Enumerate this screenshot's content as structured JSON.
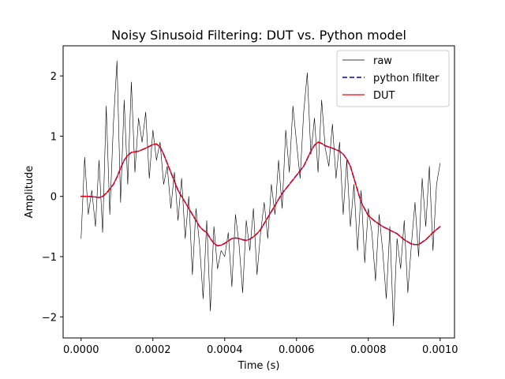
{
  "chart_data": {
    "type": "line",
    "title": "Noisy Sinusoid Filtering: DUT vs. Python model",
    "xlabel": "Time (s)",
    "ylabel": "Amplitude",
    "xlim": [
      -5e-05,
      0.00104
    ],
    "ylim": [
      -2.35,
      2.5
    ],
    "xticks": [
      0.0,
      0.0002,
      0.0004,
      0.0006,
      0.0008,
      0.001
    ],
    "xtick_labels": [
      "0.0000",
      "0.0002",
      "0.0004",
      "0.0006",
      "0.0008",
      "0.0010"
    ],
    "yticks": [
      -2,
      -1,
      0,
      1,
      2
    ],
    "ytick_labels": [
      "−2",
      "−1",
      "0",
      "1",
      "2"
    ],
    "grid": false,
    "legend_position": "top-right",
    "legend": [
      "raw",
      "python lfilter",
      "DUT"
    ],
    "series": [
      {
        "name": "raw",
        "color": "#000000",
        "style": "solid-thin",
        "x": [
          0.0,
          1e-05,
          2e-05,
          3e-05,
          4e-05,
          5e-05,
          6e-05,
          7e-05,
          8e-05,
          9e-05,
          0.0001,
          0.00011,
          0.00012,
          0.00013,
          0.00014,
          0.00015,
          0.00016,
          0.00017,
          0.00018,
          0.00019,
          0.0002,
          0.00021,
          0.00022,
          0.00023,
          0.00024,
          0.00025,
          0.00026,
          0.00027,
          0.00028,
          0.00029,
          0.0003,
          0.00031,
          0.00032,
          0.00033,
          0.00034,
          0.00035,
          0.00036,
          0.00037,
          0.00038,
          0.00039,
          0.0004,
          0.00041,
          0.00042,
          0.00043,
          0.00044,
          0.00045,
          0.00046,
          0.00047,
          0.00048,
          0.00049,
          0.0005,
          0.00051,
          0.00052,
          0.00053,
          0.00054,
          0.00055,
          0.00056,
          0.00057,
          0.00058,
          0.00059,
          0.0006,
          0.00061,
          0.00062,
          0.00063,
          0.00064,
          0.00065,
          0.00066,
          0.00067,
          0.00068,
          0.00069,
          0.0007,
          0.00071,
          0.00072,
          0.00073,
          0.00074,
          0.00075,
          0.00076,
          0.00077,
          0.00078,
          0.00079,
          0.0008,
          0.00081,
          0.00082,
          0.00083,
          0.00084,
          0.00085,
          0.00086,
          0.00087,
          0.00088,
          0.00089,
          0.0009,
          0.00091,
          0.00092,
          0.00093,
          0.00094,
          0.00095,
          0.00096,
          0.00097,
          0.00098,
          0.00099,
          0.001
        ],
        "values": [
          -0.7,
          0.65,
          -0.3,
          0.1,
          -0.5,
          0.6,
          -0.6,
          1.5,
          -0.3,
          1.2,
          2.25,
          -0.1,
          1.6,
          0.2,
          1.9,
          0.4,
          1.3,
          0.9,
          1.4,
          0.3,
          1.1,
          0.6,
          0.9,
          0.2,
          0.5,
          -0.2,
          0.4,
          -0.4,
          0.3,
          -0.7,
          0.0,
          -1.3,
          -0.2,
          -0.8,
          -1.7,
          -0.4,
          -1.9,
          -0.5,
          -1.2,
          -0.9,
          -1.0,
          -0.6,
          -1.5,
          -0.3,
          -0.8,
          -1.6,
          -0.4,
          -0.9,
          -0.2,
          -1.3,
          -0.6,
          -0.1,
          -0.7,
          0.2,
          -0.3,
          0.6,
          -0.2,
          1.1,
          0.4,
          1.5,
          0.9,
          0.3,
          1.4,
          2.05,
          0.7,
          1.3,
          0.4,
          1.6,
          0.8,
          0.5,
          1.2,
          0.3,
          0.9,
          -0.3,
          0.6,
          -0.5,
          0.2,
          -0.9,
          0.1,
          -1.1,
          -0.2,
          -0.6,
          -1.4,
          -0.3,
          -0.9,
          -1.7,
          -0.5,
          -2.15,
          -0.7,
          -1.2,
          -0.4,
          -1.6,
          -0.8,
          -0.1,
          -1.0,
          0.3,
          -0.5,
          0.5,
          -0.9,
          0.2,
          0.55
        ]
      },
      {
        "name": "python lfilter",
        "color": "#0000cc",
        "style": "dashed",
        "x": [
          0.0,
          2e-05,
          4e-05,
          5e-05,
          6e-05,
          7e-05,
          8e-05,
          9e-05,
          0.0001,
          0.00011,
          0.00012,
          0.00013,
          0.00014,
          0.00016,
          0.00018,
          0.0002,
          0.00021,
          0.00022,
          0.00023,
          0.00024,
          0.00025,
          0.00026,
          0.00027,
          0.00028,
          0.0003,
          0.00032,
          0.00033,
          0.00034,
          0.00035,
          0.00036,
          0.00037,
          0.00038,
          0.00039,
          0.0004,
          0.00041,
          0.00042,
          0.00043,
          0.00044,
          0.00045,
          0.00046,
          0.00047,
          0.00048,
          0.00049,
          0.0005,
          0.00052,
          0.00054,
          0.00056,
          0.00058,
          0.0006,
          0.00062,
          0.00064,
          0.00065,
          0.00066,
          0.00067,
          0.00068,
          0.0007,
          0.00072,
          0.00073,
          0.00074,
          0.00075,
          0.00076,
          0.00077,
          0.00078,
          0.0008,
          0.00082,
          0.00084,
          0.00086,
          0.00088,
          0.0009,
          0.00092,
          0.00093,
          0.00094,
          0.00096,
          0.00098,
          0.001
        ],
        "values": [
          0.0,
          0.0,
          -0.01,
          -0.02,
          0.0,
          0.05,
          0.12,
          0.2,
          0.32,
          0.47,
          0.6,
          0.68,
          0.73,
          0.75,
          0.8,
          0.86,
          0.87,
          0.82,
          0.7,
          0.55,
          0.4,
          0.25,
          0.1,
          0.0,
          -0.2,
          -0.4,
          -0.5,
          -0.56,
          -0.6,
          -0.7,
          -0.78,
          -0.82,
          -0.81,
          -0.78,
          -0.74,
          -0.7,
          -0.69,
          -0.7,
          -0.72,
          -0.73,
          -0.71,
          -0.67,
          -0.62,
          -0.55,
          -0.35,
          -0.15,
          0.05,
          0.2,
          0.35,
          0.5,
          0.75,
          0.85,
          0.9,
          0.88,
          0.84,
          0.8,
          0.75,
          0.7,
          0.62,
          0.5,
          0.3,
          0.1,
          -0.1,
          -0.32,
          -0.42,
          -0.5,
          -0.56,
          -0.62,
          -0.72,
          -0.79,
          -0.8,
          -0.8,
          -0.72,
          -0.6,
          -0.5
        ]
      },
      {
        "name": "DUT",
        "color": "#ff0000",
        "style": "solid",
        "x": [
          0.0,
          2e-05,
          4e-05,
          5e-05,
          6e-05,
          7e-05,
          8e-05,
          9e-05,
          0.0001,
          0.00011,
          0.00012,
          0.00013,
          0.00014,
          0.00016,
          0.00018,
          0.0002,
          0.00021,
          0.00022,
          0.00023,
          0.00024,
          0.00025,
          0.00026,
          0.00027,
          0.00028,
          0.0003,
          0.00032,
          0.00033,
          0.00034,
          0.00035,
          0.00036,
          0.00037,
          0.00038,
          0.00039,
          0.0004,
          0.00041,
          0.00042,
          0.00043,
          0.00044,
          0.00045,
          0.00046,
          0.00047,
          0.00048,
          0.00049,
          0.0005,
          0.00052,
          0.00054,
          0.00056,
          0.00058,
          0.0006,
          0.00062,
          0.00064,
          0.00065,
          0.00066,
          0.00067,
          0.00068,
          0.0007,
          0.00072,
          0.00073,
          0.00074,
          0.00075,
          0.00076,
          0.00077,
          0.00078,
          0.0008,
          0.00082,
          0.00084,
          0.00086,
          0.00088,
          0.0009,
          0.00092,
          0.00093,
          0.00094,
          0.00096,
          0.00098,
          0.001
        ],
        "values": [
          0.0,
          0.0,
          -0.01,
          -0.02,
          0.0,
          0.05,
          0.12,
          0.2,
          0.32,
          0.47,
          0.6,
          0.68,
          0.73,
          0.75,
          0.8,
          0.86,
          0.87,
          0.82,
          0.7,
          0.55,
          0.4,
          0.25,
          0.1,
          0.0,
          -0.2,
          -0.4,
          -0.5,
          -0.56,
          -0.6,
          -0.7,
          -0.78,
          -0.82,
          -0.81,
          -0.78,
          -0.74,
          -0.7,
          -0.69,
          -0.7,
          -0.72,
          -0.73,
          -0.71,
          -0.67,
          -0.62,
          -0.55,
          -0.35,
          -0.15,
          0.05,
          0.2,
          0.35,
          0.5,
          0.75,
          0.85,
          0.9,
          0.88,
          0.84,
          0.8,
          0.75,
          0.7,
          0.62,
          0.5,
          0.3,
          0.1,
          -0.1,
          -0.32,
          -0.42,
          -0.5,
          -0.56,
          -0.62,
          -0.72,
          -0.79,
          -0.8,
          -0.8,
          -0.72,
          -0.6,
          -0.5
        ]
      }
    ]
  }
}
